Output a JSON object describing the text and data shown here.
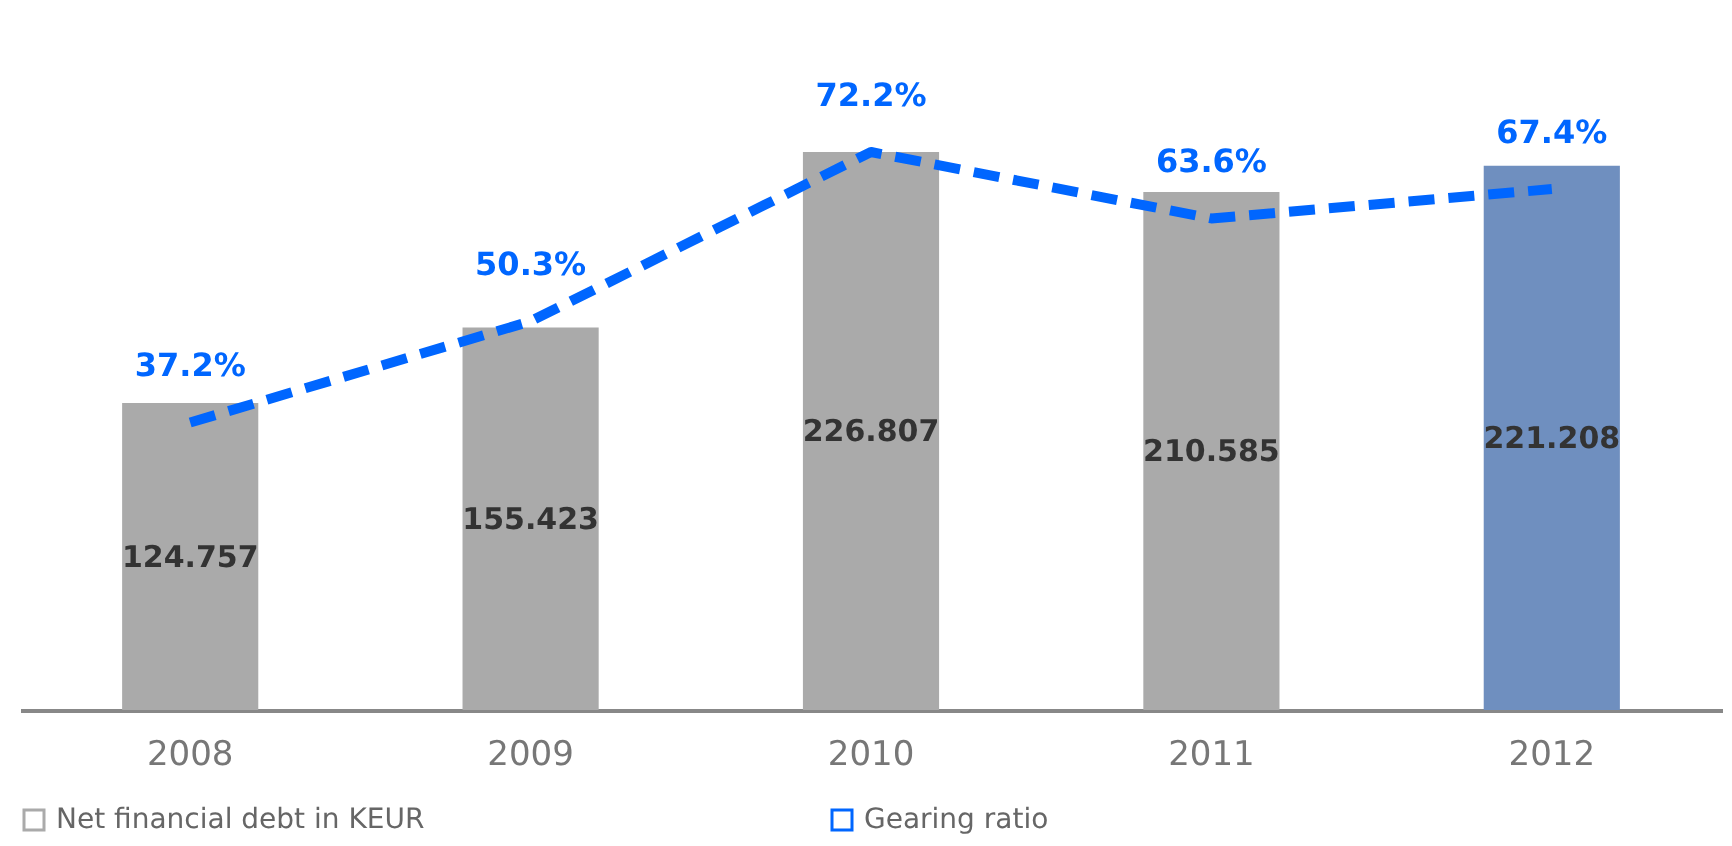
{
  "chart_data": {
    "type": "bar",
    "categories": [
      "2008",
      "2009",
      "2010",
      "2011",
      "2012"
    ],
    "tick_labels": "x",
    "legend": "bottom",
    "grid": false,
    "data_labels": true,
    "series": [
      {
        "name": "Net financial debt in KEUR",
        "colors": [
          "#aaaaaa",
          "#aaaaaa",
          "#aaaaaa",
          "#aaaaaa",
          "#6f8fbf"
        ],
        "values": [
          124.757,
          155.423,
          226.807,
          210.585,
          221.208
        ]
      },
      {
        "name": "Gearing ratio",
        "type": "line",
        "axis": "y2",
        "color": "#0066ff",
        "line_style": "dashed",
        "marker": "none",
        "values": [
          37.2,
          50.3,
          72.2,
          63.6,
          67.4
        ],
        "value_labels": [
          "37.2%",
          "50.3%",
          "72.2%",
          "63.6%",
          "67.4%"
        ]
      }
    ]
  }
}
